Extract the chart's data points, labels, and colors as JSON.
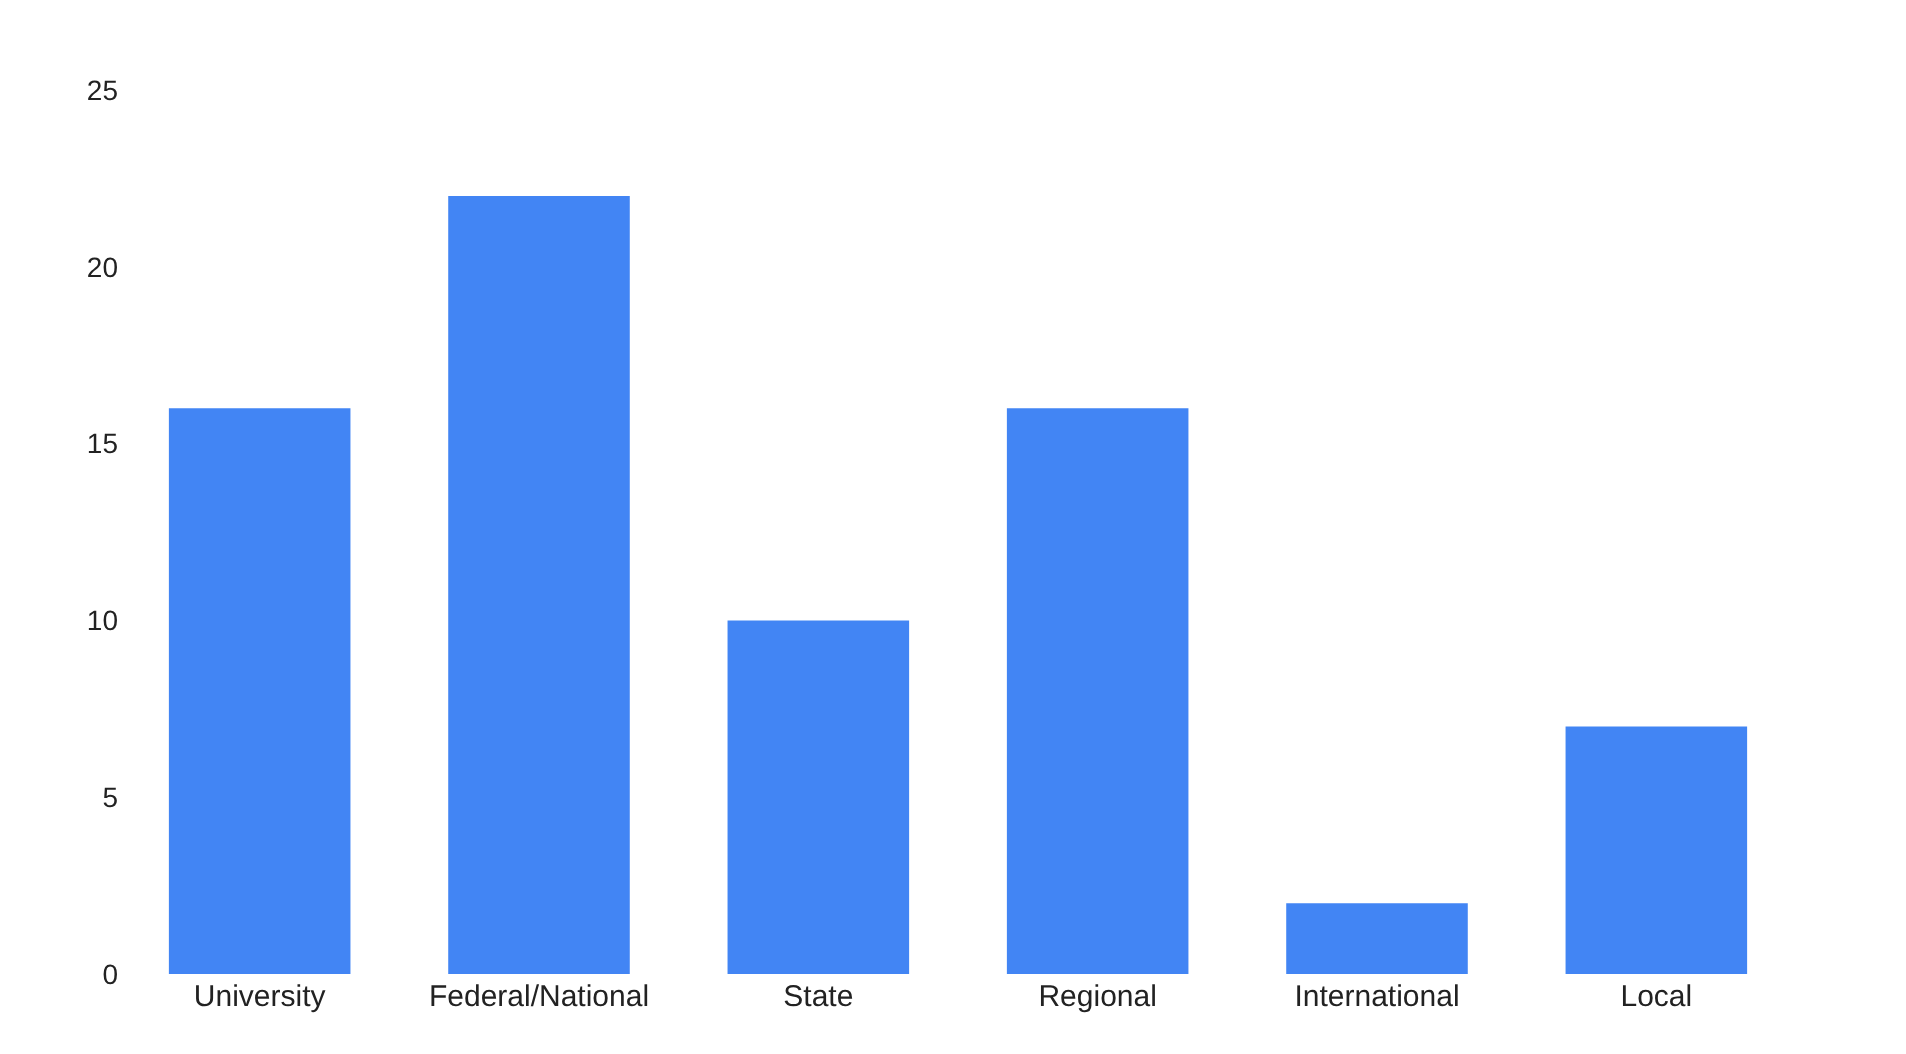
{
  "chart_data": {
    "type": "bar",
    "categories": [
      "University",
      "Federal/National",
      "State",
      "Regional",
      "International",
      "Local"
    ],
    "values": [
      16,
      22,
      10,
      16,
      2,
      7
    ],
    "color": "#4285f4",
    "ylim": [
      0,
      25
    ],
    "yticks": [
      0,
      5,
      10,
      15,
      20,
      25
    ]
  }
}
